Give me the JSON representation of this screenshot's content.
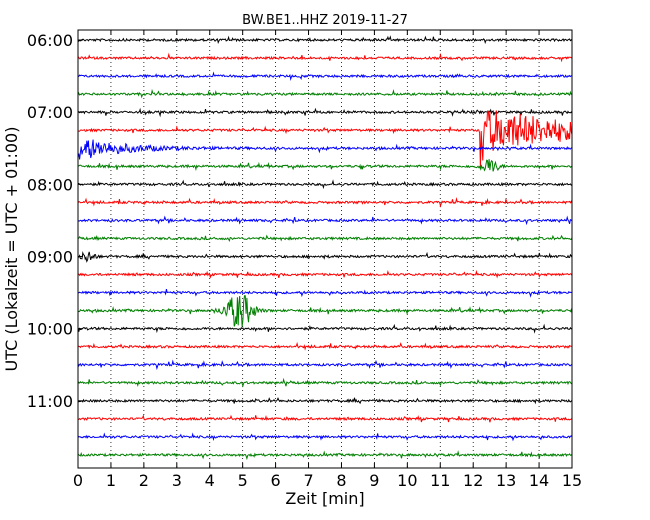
{
  "chart_data": {
    "type": "line",
    "title": "BW.BE1..HHZ 2019-11-27",
    "xlabel": "Zeit  [min]",
    "ylabel": "UTC (Lokalzeit = UTC + 01:00)",
    "xlim": [
      0,
      15
    ],
    "x_ticks": [
      "0",
      "1",
      "2",
      "3",
      "4",
      "5",
      "6",
      "7",
      "8",
      "9",
      "10",
      "11",
      "12",
      "13",
      "14",
      "15"
    ],
    "y_tick_labels": [
      "06:00",
      "07:00",
      "08:00",
      "09:00",
      "10:00",
      "11:00"
    ],
    "grid": "vertical dotted",
    "rows": [
      {
        "time": "06:00",
        "color": "#000000"
      },
      {
        "time": "06:15",
        "color": "#ff0000"
      },
      {
        "time": "06:30",
        "color": "#0000ff"
      },
      {
        "time": "06:45",
        "color": "#008000"
      },
      {
        "time": "07:00",
        "color": "#000000"
      },
      {
        "time": "07:15",
        "color": "#ff0000",
        "events": [
          {
            "t": 12.2,
            "amp": 2.4,
            "duration": 2.8,
            "shape": "quake"
          }
        ]
      },
      {
        "time": "07:30",
        "color": "#0000ff",
        "events": [
          {
            "t": 0.0,
            "amp": 1.0,
            "duration": 3.5,
            "shape": "decay"
          }
        ]
      },
      {
        "time": "07:45",
        "color": "#008000",
        "events": [
          {
            "t": 12.5,
            "amp": 0.7,
            "duration": 0.6,
            "shape": "spike"
          }
        ]
      },
      {
        "time": "08:00",
        "color": "#000000"
      },
      {
        "time": "08:15",
        "color": "#ff0000"
      },
      {
        "time": "08:30",
        "color": "#0000ff"
      },
      {
        "time": "08:45",
        "color": "#008000"
      },
      {
        "time": "09:00",
        "color": "#000000",
        "events": [
          {
            "t": 0.3,
            "amp": 0.5,
            "duration": 0.5,
            "shape": "spike"
          }
        ]
      },
      {
        "time": "09:15",
        "color": "#ff0000"
      },
      {
        "time": "09:30",
        "color": "#0000ff"
      },
      {
        "time": "09:45",
        "color": "#008000",
        "events": [
          {
            "t": 4.9,
            "amp": 1.6,
            "duration": 1.0,
            "shape": "spike"
          }
        ]
      },
      {
        "time": "10:00",
        "color": "#000000"
      },
      {
        "time": "10:15",
        "color": "#ff0000"
      },
      {
        "time": "10:30",
        "color": "#0000ff"
      },
      {
        "time": "10:45",
        "color": "#008000"
      },
      {
        "time": "11:00",
        "color": "#000000"
      },
      {
        "time": "11:15",
        "color": "#ff0000"
      },
      {
        "time": "11:30",
        "color": "#0000ff"
      },
      {
        "time": "11:45",
        "color": "#008000"
      }
    ]
  }
}
